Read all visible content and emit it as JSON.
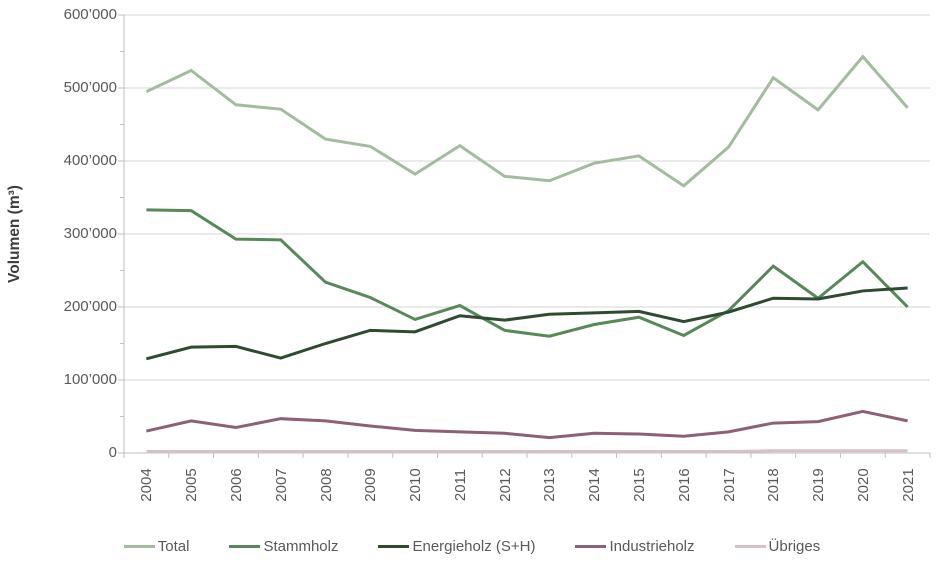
{
  "colors": {
    "background": "#ffffff",
    "gridline": "#d6d6d6",
    "axis_line": "#bfbfbf",
    "tick_mark": "#bfbfbf",
    "tick_text": "#595959",
    "axis_title_text": "#3d3d3d",
    "total": "#a3bb9e",
    "stammholz": "#578859",
    "energieholz": "#2e4b31",
    "industrieholz": "#8d6075",
    "uebriges": "#d5c2c5"
  },
  "chart_data": {
    "type": "line",
    "title": "",
    "xlabel": "",
    "ylabel": "Volumen (m³)",
    "ylim": [
      0,
      600000
    ],
    "ytick_step": 100000,
    "ytick_minor_step": 50000,
    "grid": "horizontal-major",
    "legend_position": "bottom",
    "y_tick_labels": [
      "0",
      "100’000",
      "200’000",
      "300’000",
      "400’000",
      "500’000",
      "600’000"
    ],
    "categories": [
      "2004",
      "2005",
      "2006",
      "2007",
      "2008",
      "2009",
      "2010",
      "2011",
      "2012",
      "2013",
      "2014",
      "2015",
      "2016",
      "2017",
      "2018",
      "2019",
      "2020",
      "2021"
    ],
    "series": [
      {
        "name": "Total",
        "color": "#a3bb9e",
        "values": [
          495000,
          524000,
          477000,
          471000,
          430000,
          420000,
          382000,
          421000,
          379000,
          373000,
          397000,
          407000,
          366000,
          419000,
          514000,
          470000,
          543000,
          473000
        ]
      },
      {
        "name": "Stammholz",
        "color": "#578859",
        "values": [
          333000,
          332000,
          293000,
          292000,
          234000,
          213000,
          183000,
          202000,
          168000,
          160000,
          176000,
          186000,
          161000,
          195000,
          256000,
          212000,
          262000,
          200000
        ]
      },
      {
        "name": "Energieholz (S+H)",
        "color": "#2e4b31",
        "values": [
          129000,
          145000,
          146000,
          130000,
          150000,
          168000,
          166000,
          188000,
          182000,
          190000,
          192000,
          194000,
          180000,
          193000,
          212000,
          211000,
          222000,
          226000
        ]
      },
      {
        "name": "Industrieholz",
        "color": "#8d6075",
        "values": [
          30000,
          44000,
          35000,
          47000,
          44000,
          37000,
          31000,
          29000,
          27000,
          21000,
          27000,
          26000,
          23000,
          29000,
          41000,
          43000,
          57000,
          44000
        ]
      },
      {
        "name": "Übriges",
        "color": "#d5c2c5",
        "values": [
          2000,
          2000,
          2000,
          2000,
          2000,
          2000,
          2000,
          2000,
          2000,
          2000,
          2000,
          2000,
          2000,
          2000,
          3000,
          3000,
          3000,
          3000
        ]
      }
    ]
  }
}
